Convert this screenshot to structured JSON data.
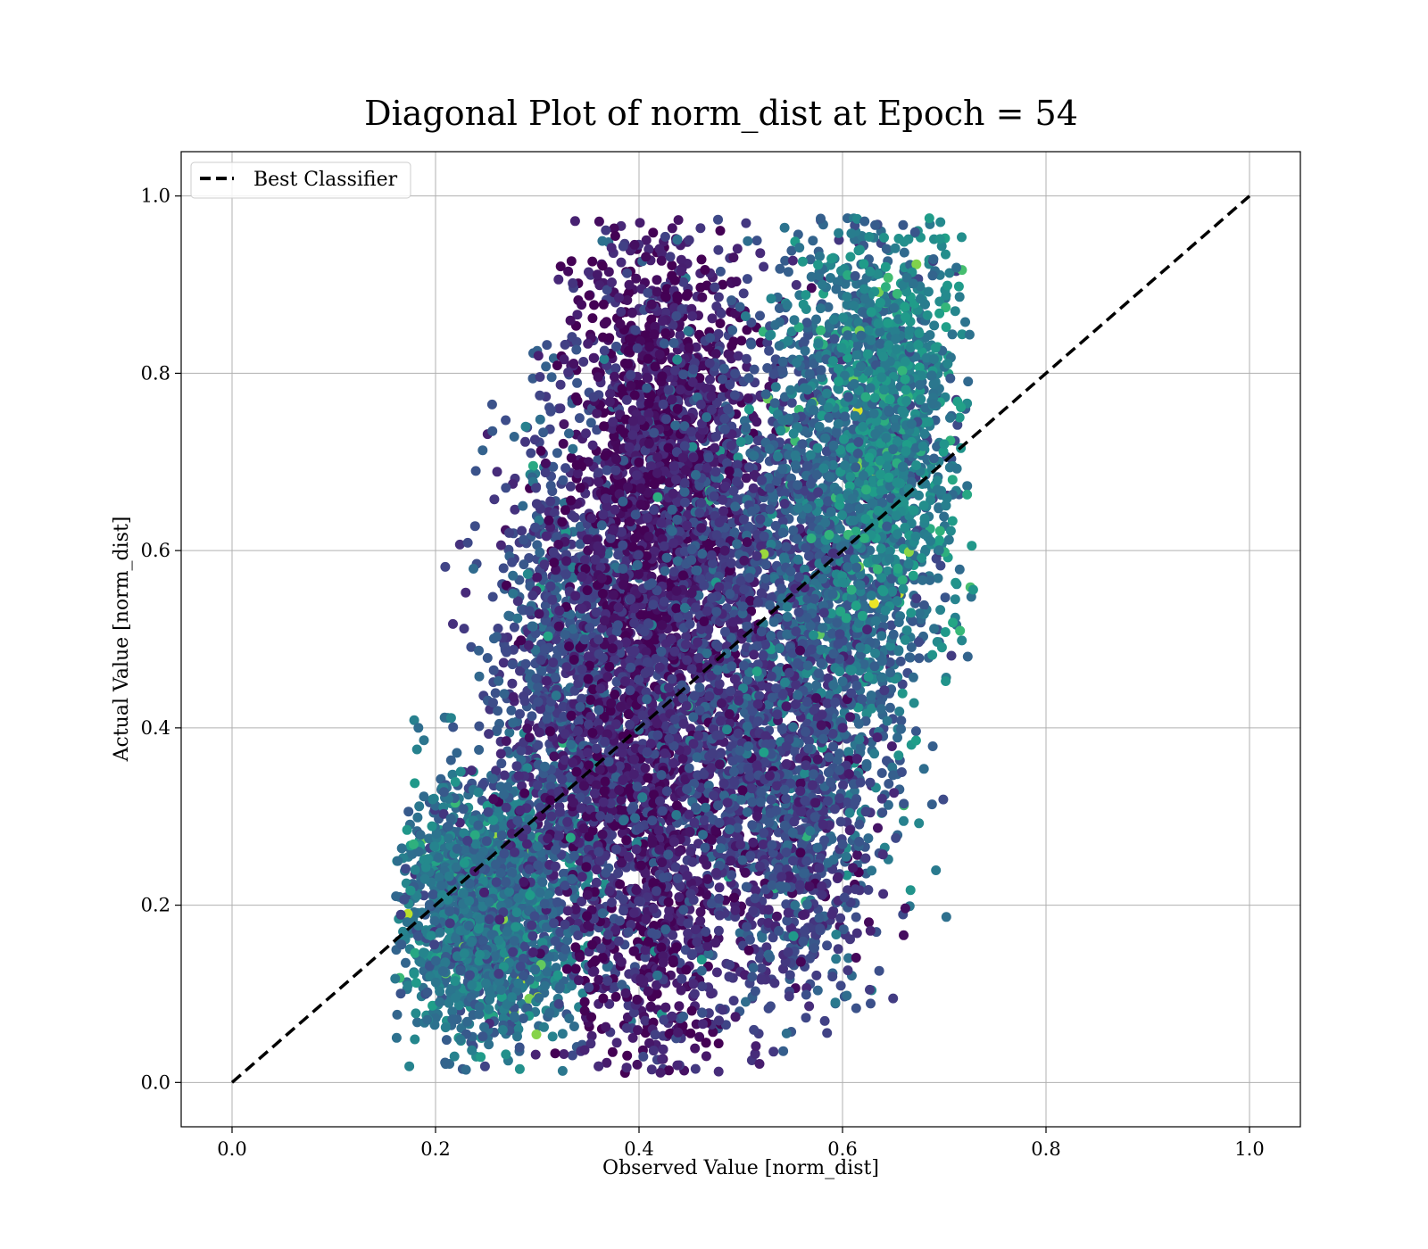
{
  "chart_data": {
    "type": "scatter",
    "title": "Diagonal Plot of norm_dist at Epoch = 54",
    "xlabel": "Observed Value [norm_dist]",
    "ylabel": "Actual Value [norm_dist]",
    "xlim": [
      -0.05,
      1.05
    ],
    "ylim": [
      -0.05,
      1.05
    ],
    "xticks": [
      0.0,
      0.2,
      0.4,
      0.6,
      0.8,
      1.0
    ],
    "yticks": [
      0.0,
      0.2,
      0.4,
      0.6,
      0.8,
      1.0
    ],
    "xtick_labels": [
      "0.0",
      "0.2",
      "0.4",
      "0.6",
      "0.8",
      "1.0"
    ],
    "ytick_labels": [
      "0.0",
      "0.2",
      "0.4",
      "0.6",
      "0.8",
      "1.0"
    ],
    "grid": true,
    "legend": {
      "position": "top-left",
      "entries": [
        "Best Classifier"
      ]
    },
    "reference_line": {
      "name": "Best Classifier",
      "x": [
        0.0,
        1.0
      ],
      "y": [
        0.0,
        1.0
      ],
      "style": "dashed",
      "color": "#000000"
    },
    "colormap": "viridis",
    "point_clusters": [
      {
        "cx": 0.25,
        "cy": 0.2,
        "sx": 0.045,
        "sy": 0.07,
        "n": 1800,
        "color_bias": 0.38
      },
      {
        "cx": 0.33,
        "cy": 0.45,
        "sx": 0.04,
        "sy": 0.15,
        "n": 1200,
        "color_bias": 0.22
      },
      {
        "cx": 0.42,
        "cy": 0.72,
        "sx": 0.04,
        "sy": 0.13,
        "n": 1500,
        "color_bias": 0.06
      },
      {
        "cx": 0.41,
        "cy": 0.3,
        "sx": 0.045,
        "sy": 0.17,
        "n": 1700,
        "color_bias": 0.08
      },
      {
        "cx": 0.5,
        "cy": 0.5,
        "sx": 0.05,
        "sy": 0.18,
        "n": 1600,
        "color_bias": 0.18
      },
      {
        "cx": 0.6,
        "cy": 0.62,
        "sx": 0.045,
        "sy": 0.17,
        "n": 1600,
        "color_bias": 0.33
      },
      {
        "cx": 0.65,
        "cy": 0.75,
        "sx": 0.035,
        "sy": 0.12,
        "n": 900,
        "color_bias": 0.45
      },
      {
        "cx": 0.55,
        "cy": 0.3,
        "sx": 0.04,
        "sy": 0.1,
        "n": 700,
        "color_bias": 0.2
      }
    ],
    "clip": {
      "xmin": 0.16,
      "xmax": 0.73,
      "ymin": 0.01,
      "ymax": 0.975
    }
  }
}
